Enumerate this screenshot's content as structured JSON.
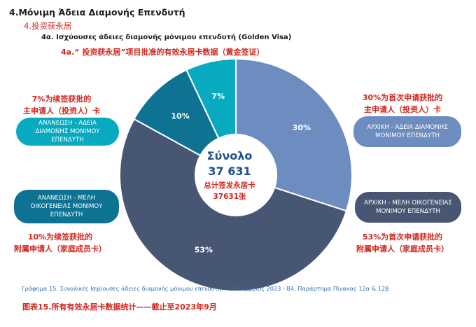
{
  "header": {
    "title_gr": "4.Μόνιμη Άδεια Διαμονής  Επενδυτή",
    "title_cn": "4.投资获永居",
    "subtitle_gr": "4α. Ισχύουσες άδειες διαμονής μόνιμου επενδυτή (Golden Visa)",
    "subtitle_cn": "4a.“ 投资获永居”项目批准的有效永居卡数据（黄金签证）"
  },
  "chart_data": {
    "type": "pie",
    "total_label": "Σύνολο",
    "total_value": "37 631",
    "total_cn_1": "总计签发永居卡",
    "total_cn_2": "37631张",
    "slices": [
      {
        "label": "ΑΡΧΙΚΗ - ΑΔΕΙΑ ΔΙΑΜΟΝΗΣ ΜΟΝΙΜΟΥ ΕΠΕΝΔΥΤΗ",
        "value": 30,
        "value_label": "30%",
        "note_cn": "30%为首次申请获批的主申请人（投资人）卡",
        "color": "#6d8cc0"
      },
      {
        "label": "ΑΡΧΙΚΗ - ΜΕΛΗ ΟΙΚΟΓΕΝΕΙΑΣ ΜΟΝΙΜΟΥ ΕΠΕΝΔΥΤΗ",
        "value": 53,
        "value_label": "53%",
        "note_cn": "53%为首次申请获批的附属申请人（家庭成员卡）",
        "color": "#475673"
      },
      {
        "label": "ΑΝΑΝΕΩΣΗ - ΜΕΛΗ ΟΙΚΟΓΕΝΕΙΑΣ ΜΟΝΙΜΟΥ ΕΠΕΝΔΥΤΗ",
        "value": 10,
        "value_label": "10%",
        "note_cn": "10%为续签获批的附属申请人（家庭成员卡）",
        "color": "#0e7293"
      },
      {
        "label": "ΑΝΑΝΕΩΣΗ - ΑΔΕΙΑ ΔΙΑΜΟΝΗΣ ΜΟΝΙΜΟΥ ΕΠΕΝΔΥΤΗ",
        "value": 7,
        "value_label": "7%",
        "note_cn": "7%为续签获批的主申请人（投资人）卡",
        "color": "#08aac0"
      }
    ],
    "labels_7pct": {
      "line1": "7%为续签获批的",
      "line2": "主申请人（投资人）卡"
    },
    "labels_10pct": {
      "line1": "10%为续签获批的",
      "line2": "附属申请人（家庭成员卡）"
    },
    "labels_30pct": {
      "line1": "30%为首次申请获批的",
      "line2": "主申请人（投资人）卡"
    },
    "labels_53pct": {
      "line1": "53%为首次申请获批的",
      "line2": "附属申请人（家庭成员卡）"
    }
  },
  "legend_pills": {
    "renew_main": "ΑΝΑΝΕΩΣΗ - ΑΔΕΙΑ ΔΙΑΜΟΝΗΣ ΜΟΝΙΜΟΥ ΕΠΕΝΔΥΤΗ",
    "renew_family": "ΑΝΑΝΕΩΣΗ - ΜΕΛΗ ΟΙΚΟΓΕΝΕΙΑΣ ΜΟΝΙΜΟΥ ΕΠΕΝΔΥΤΗ",
    "initial_main": "ΑΡΧΙΚΗ - ΑΔΕΙΑ ΔΙΑΜΟΝΗΣ ΜΟΝΙΜΟΥ ΕΠΕΝΔΥΤΗ",
    "initial_family": "ΑΡΧΙΚΗ - ΜΕΛΗ ΟΙΚΟΓΕΝΕΙΑΣ ΜΟΝΙΜΟΥ ΕΠΕΝΔΥΤΗ"
  },
  "captions": {
    "greek": "Γράφημα 15. Συνολικές Ισχύουσες άδειες διαμονής μόνιμου επενδυτή – Σεπτέμβριος 2023 - Βλ. Παράρτημα  Πίνακας 12α & 12β",
    "chinese": "图表15.所有有效永居卡数据统计——截止至2023年9月"
  }
}
